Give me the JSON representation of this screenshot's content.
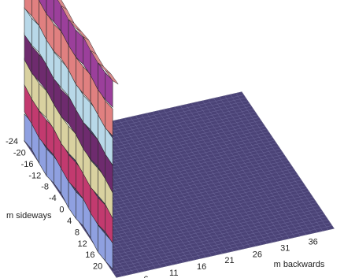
{
  "chart_data": {
    "type": "surface",
    "title": "",
    "xlabel": "m backwards",
    "ylabel": "m sideways",
    "zlabel": "",
    "x_ticks": [
      "1",
      "6",
      "11",
      "16",
      "21",
      "26",
      "31",
      "36"
    ],
    "y_ticks": [
      "-24",
      "-20",
      "-16",
      "-12",
      "-8",
      "-4",
      "0",
      "4",
      "8",
      "12",
      "16",
      "20"
    ],
    "x_range": [
      1,
      40
    ],
    "y_range": [
      -24,
      24
    ],
    "ridge_x_range": [
      1,
      2
    ],
    "ridge_y_range": [
      -24,
      22
    ],
    "ridge_height_levels": 7,
    "band_colors": [
      "#8fa0e0",
      "#c23a6f",
      "#d9d1a0",
      "#6e2b6e",
      "#b8d8e8",
      "#e08080",
      "#9b3f9b"
    ],
    "floor_color": "#4b4377",
    "floor_line_color": "#6f6a9c",
    "grid": true
  }
}
